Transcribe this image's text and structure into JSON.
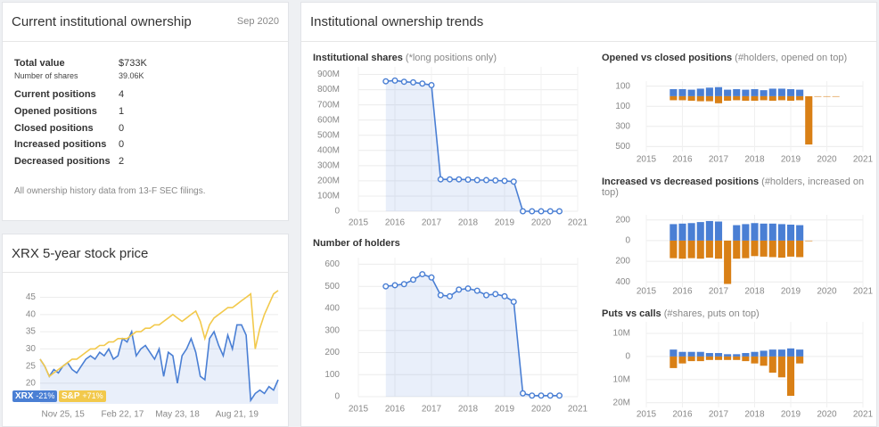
{
  "ownership": {
    "title": "Current institutional ownership",
    "date": "Sep 2020",
    "rows": [
      {
        "label": "Total value",
        "value": "$733K"
      },
      {
        "label": "Number of shares",
        "value": "39.06K"
      },
      {
        "label": "Current positions",
        "value": 4
      },
      {
        "label": "Opened positions",
        "value": 1
      },
      {
        "label": "Closed positions",
        "value": 0
      },
      {
        "label": "Increased positions",
        "value": 0
      },
      {
        "label": "Decreased positions",
        "value": 2
      }
    ],
    "note": "All ownership history data from 13-F SEC filings."
  },
  "trends_title": "Institutional ownership trends",
  "chart_data": [
    {
      "type": "line",
      "title": "XRX 5-year stock price",
      "categories": [
        null,
        null,
        null,
        null,
        null,
        "Nov 25, 15",
        null,
        null,
        null,
        null,
        null,
        null,
        null,
        null,
        null,
        null,
        null,
        null,
        "Feb 22, 17",
        null,
        null,
        null,
        null,
        null,
        null,
        null,
        null,
        null,
        null,
        null,
        "May 23, 18",
        null,
        null,
        null,
        null,
        null,
        null,
        null,
        null,
        null,
        null,
        null,
        null,
        "Aug 21, 19",
        null,
        null,
        null,
        null,
        null,
        null,
        null,
        null,
        null
      ],
      "series": [
        {
          "name": "XRX",
          "change": "-21%",
          "color": "#4a7fd4",
          "area": true,
          "values": [
            27,
            25,
            22,
            24,
            23,
            25,
            26,
            24,
            23,
            25,
            27,
            28,
            27,
            29,
            28,
            30,
            27,
            28,
            33,
            32,
            35,
            28,
            30,
            31,
            29,
            27,
            30,
            22,
            29,
            28,
            20,
            28,
            30,
            33,
            29,
            22,
            21,
            33,
            35,
            31,
            28,
            34,
            30,
            37,
            37,
            34,
            15,
            17,
            18,
            17,
            19,
            18,
            21
          ]
        },
        {
          "name": "S&P",
          "change": "+71%",
          "color": "#f2c94c",
          "values": [
            27,
            25,
            22,
            23,
            24,
            25,
            26,
            27,
            27,
            28,
            29,
            30,
            30,
            31,
            31,
            32,
            32,
            33,
            33,
            33,
            34,
            35,
            35,
            36,
            36,
            37,
            37,
            38,
            39,
            40,
            39,
            38,
            39,
            40,
            41,
            38,
            33,
            37,
            39,
            40,
            41,
            42,
            42,
            43,
            44,
            45,
            46,
            30,
            36,
            40,
            43,
            46,
            47
          ]
        }
      ],
      "ylim": [
        14,
        48
      ],
      "yticks": [
        20,
        25,
        30,
        35,
        40,
        45
      ],
      "grid": true
    },
    {
      "type": "line",
      "title": "Institutional shares",
      "subtitle": "(*long positions only)",
      "x": [
        2015.75,
        2016,
        2016.25,
        2016.5,
        2016.75,
        2017,
        2017.25,
        2017.5,
        2017.75,
        2018,
        2018.25,
        2018.5,
        2018.75,
        2019,
        2019.25,
        2019.5,
        2019.75,
        2020,
        2020.25,
        2020.5
      ],
      "series": [
        {
          "color": "#4a7fd4",
          "area": true,
          "markers": true,
          "values": [
            855000000,
            860000000,
            852000000,
            848000000,
            840000000,
            830000000,
            210000000,
            210000000,
            210000000,
            208000000,
            205000000,
            205000000,
            203000000,
            200000000,
            195000000,
            0,
            0,
            0,
            0,
            0
          ]
        }
      ],
      "xlim": [
        2015,
        2021
      ],
      "xticks": [
        2015,
        2016,
        2017,
        2018,
        2019,
        2020,
        2021
      ],
      "ylim": [
        0,
        950000000
      ],
      "yticks": [
        0,
        {
          "value": 100000000,
          "label": "100M"
        },
        {
          "value": 200000000,
          "label": "200M"
        },
        {
          "value": 300000000,
          "label": "300M"
        },
        {
          "value": 400000000,
          "label": "400M"
        },
        {
          "value": 500000000,
          "label": "500M"
        },
        {
          "value": 600000000,
          "label": "600M"
        },
        {
          "value": 700000000,
          "label": "700M"
        },
        {
          "value": 800000000,
          "label": "800M"
        },
        {
          "value": 900000000,
          "label": "900M"
        }
      ],
      "grid": true
    },
    {
      "type": "line",
      "title": "Number of holders",
      "x": [
        2015.75,
        2016,
        2016.25,
        2016.5,
        2016.75,
        2017,
        2017.25,
        2017.5,
        2017.75,
        2018,
        2018.25,
        2018.5,
        2018.75,
        2019,
        2019.25,
        2019.5,
        2019.75,
        2020,
        2020.25,
        2020.5
      ],
      "series": [
        {
          "color": "#4a7fd4",
          "area": true,
          "markers": true,
          "values": [
            500,
            505,
            510,
            530,
            555,
            540,
            460,
            455,
            485,
            490,
            480,
            460,
            465,
            455,
            430,
            15,
            5,
            5,
            5,
            5
          ]
        }
      ],
      "xlim": [
        2015,
        2021
      ],
      "xticks": [
        2015,
        2016,
        2017,
        2018,
        2019,
        2020,
        2021
      ],
      "ylim": [
        0,
        630
      ],
      "yticks": [
        0,
        100,
        200,
        300,
        400,
        500,
        600
      ],
      "grid": true
    },
    {
      "type": "bar",
      "title": "Opened vs closed positions",
      "subtitle": "(#holders, opened on top)",
      "x": [
        2015.75,
        2016,
        2016.25,
        2016.5,
        2016.75,
        2017,
        2017.25,
        2017.5,
        2017.75,
        2018,
        2018.25,
        2018.5,
        2018.75,
        2019,
        2019.25,
        2019.5,
        2019.75,
        2020,
        2020.25,
        2020.5
      ],
      "series": [
        {
          "color": "#4a7fd4",
          "values": [
            70,
            70,
            65,
            75,
            85,
            90,
            65,
            70,
            65,
            70,
            60,
            75,
            75,
            70,
            65,
            0,
            0,
            0,
            0,
            0
          ]
        },
        {
          "color": "#d98016",
          "values": [
            -40,
            -40,
            -45,
            -50,
            -50,
            -70,
            -45,
            -40,
            -45,
            -45,
            -40,
            -45,
            -40,
            -45,
            -40,
            -480,
            -5,
            -5,
            -5,
            0
          ]
        }
      ],
      "xlim": [
        2015,
        2021
      ],
      "xticks": [
        2015,
        2016,
        2017,
        2018,
        2019,
        2020,
        2021
      ],
      "ylim": [
        -550,
        150
      ],
      "yticks": [
        100,
        {
          "value": -100,
          "label": "100"
        },
        {
          "value": -300,
          "label": "300"
        },
        {
          "value": -500,
          "label": "500"
        }
      ],
      "grid": true
    },
    {
      "type": "bar",
      "title": "Increased vs decreased positions",
      "subtitle": "(#holders, increased on top)",
      "x": [
        2015.75,
        2016,
        2016.25,
        2016.5,
        2016.75,
        2017,
        2017.25,
        2017.5,
        2017.75,
        2018,
        2018.25,
        2018.5,
        2018.75,
        2019,
        2019.25,
        2019.5,
        2019.75,
        2020,
        2020.25,
        2020.5
      ],
      "series": [
        {
          "color": "#4a7fd4",
          "values": [
            160,
            165,
            170,
            180,
            190,
            185,
            0,
            150,
            160,
            170,
            165,
            165,
            160,
            155,
            150,
            0,
            0,
            0,
            0,
            0
          ]
        },
        {
          "color": "#d98016",
          "values": [
            -170,
            -175,
            -170,
            -175,
            -165,
            -175,
            -420,
            -175,
            -170,
            -150,
            -155,
            -160,
            -165,
            -155,
            -160,
            -5,
            0,
            0,
            0,
            0
          ]
        }
      ],
      "xlim": [
        2015,
        2021
      ],
      "xticks": [
        2015,
        2016,
        2017,
        2018,
        2019,
        2020,
        2021
      ],
      "ylim": [
        -450,
        250
      ],
      "yticks": [
        200,
        0,
        {
          "value": -200,
          "label": "200"
        },
        {
          "value": -400,
          "label": "400"
        }
      ],
      "grid": true
    },
    {
      "type": "bar",
      "title": "Puts vs calls",
      "subtitle": "(#shares, puts on top)",
      "x": [
        2015.75,
        2016,
        2016.25,
        2016.5,
        2016.75,
        2017,
        2017.25,
        2017.5,
        2017.75,
        2018,
        2018.25,
        2018.5,
        2018.75,
        2019,
        2019.25,
        2019.5,
        2019.75,
        2020,
        2020.25,
        2020.5
      ],
      "series": [
        {
          "color": "#4a7fd4",
          "values": [
            3000000,
            2000000,
            2000000,
            2000000,
            1500000,
            1500000,
            1000000,
            1000000,
            1500000,
            2000000,
            2500000,
            3000000,
            3000000,
            3500000,
            3000000,
            0,
            0,
            0,
            0,
            0
          ]
        },
        {
          "color": "#d98016",
          "values": [
            -5000000,
            -3000000,
            -2000000,
            -2000000,
            -1500000,
            -1500000,
            -1500000,
            -1500000,
            -2000000,
            -3000000,
            -4000000,
            -7000000,
            -9000000,
            -17000000,
            -3000000,
            0,
            0,
            0,
            0,
            0
          ]
        }
      ],
      "xlim": [
        2015,
        2021
      ],
      "xticks": [
        2015,
        2016,
        2017,
        2018,
        2019,
        2020,
        2021
      ],
      "ylim": [
        -22000000,
        15000000
      ],
      "yticks": [
        {
          "value": 10000000,
          "label": "10M"
        },
        0,
        {
          "value": -10000000,
          "label": "10M"
        },
        {
          "value": -20000000,
          "label": "20M"
        }
      ],
      "grid": true
    }
  ]
}
